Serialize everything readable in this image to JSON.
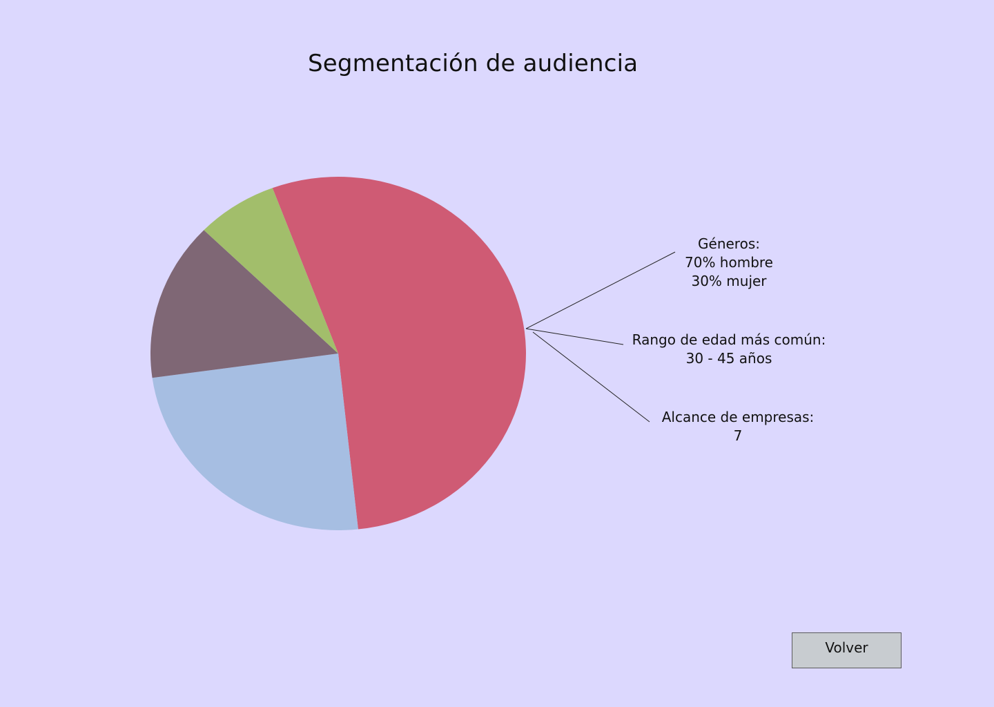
{
  "page": {
    "title": "Segmentación de audiencia",
    "background": "#dcd8fe"
  },
  "chart_data": {
    "type": "pie",
    "title": "",
    "slices": [
      {
        "value": 54.0,
        "color": "#cf5b74"
      },
      {
        "value": 24.5,
        "color": "#a6bee2"
      },
      {
        "value": 14.5,
        "color": "#7f6775"
      },
      {
        "value": 7.0,
        "color": "#a2be6b"
      }
    ]
  },
  "callouts": {
    "genders": {
      "heading": "Géneros:",
      "line1": "70% hombre",
      "line2": "30% mujer"
    },
    "age_range": {
      "heading": "Rango de edad más común:",
      "value": "30 - 45 años"
    },
    "company_reach": {
      "heading": "Alcance de empresas:",
      "value": "7"
    }
  },
  "actions": {
    "back_label": "Volver"
  }
}
